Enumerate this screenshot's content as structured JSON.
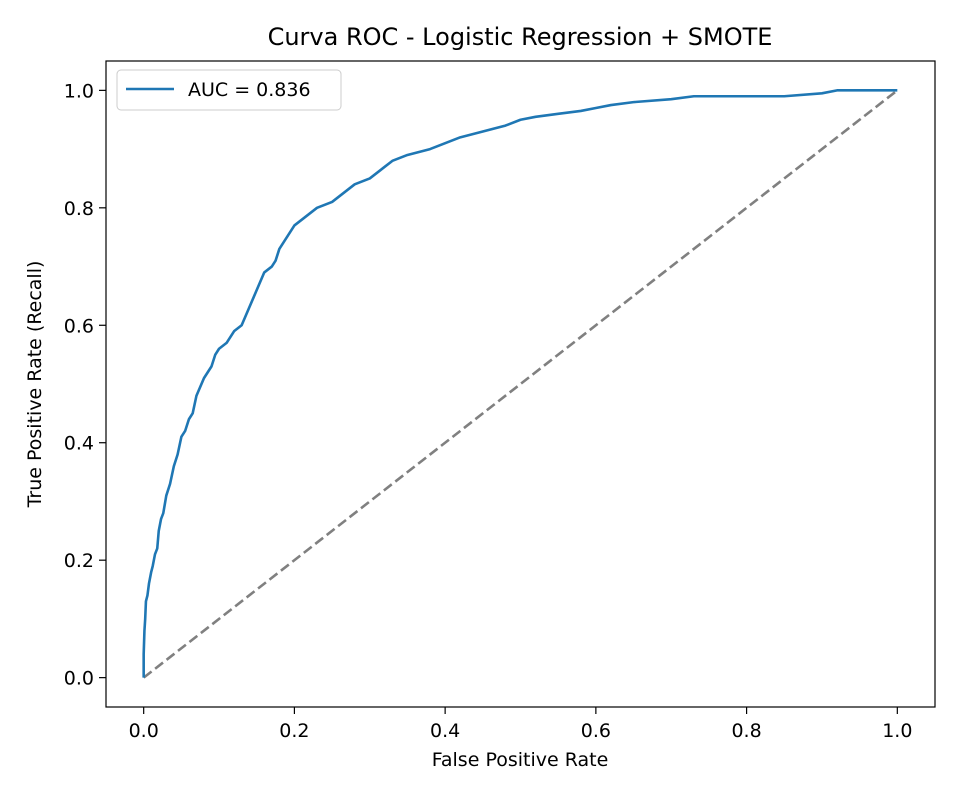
{
  "chart_data": {
    "type": "line",
    "title": "Curva ROC - Logistic Regression + SMOTE",
    "xlabel": "False Positive Rate",
    "ylabel": "True Positive Rate (Recall)",
    "xlim": [
      -0.05,
      1.05
    ],
    "ylim": [
      -0.05,
      1.05
    ],
    "xticks": [
      "0.0",
      "0.2",
      "0.4",
      "0.6",
      "0.8",
      "1.0"
    ],
    "yticks": [
      "0.0",
      "0.2",
      "0.4",
      "0.6",
      "0.8",
      "1.0"
    ],
    "grid": false,
    "legend_position": "upper-left",
    "series": [
      {
        "name": "AUC = 0.836",
        "color": "#1f77b4",
        "style": "solid",
        "x": [
          0.0,
          0.0,
          0.001,
          0.002,
          0.003,
          0.005,
          0.007,
          0.01,
          0.012,
          0.015,
          0.018,
          0.02,
          0.023,
          0.026,
          0.03,
          0.035,
          0.04,
          0.045,
          0.05,
          0.055,
          0.06,
          0.065,
          0.07,
          0.08,
          0.085,
          0.09,
          0.095,
          0.1,
          0.11,
          0.12,
          0.13,
          0.14,
          0.15,
          0.16,
          0.17,
          0.175,
          0.18,
          0.19,
          0.2,
          0.21,
          0.22,
          0.23,
          0.25,
          0.27,
          0.28,
          0.3,
          0.32,
          0.33,
          0.35,
          0.38,
          0.4,
          0.42,
          0.45,
          0.48,
          0.5,
          0.52,
          0.55,
          0.58,
          0.6,
          0.62,
          0.65,
          0.7,
          0.73,
          0.76,
          0.8,
          0.85,
          0.9,
          0.92,
          0.95,
          0.98,
          1.0
        ],
        "y": [
          0.0,
          0.04,
          0.08,
          0.1,
          0.13,
          0.14,
          0.16,
          0.18,
          0.19,
          0.21,
          0.22,
          0.25,
          0.27,
          0.28,
          0.31,
          0.33,
          0.36,
          0.38,
          0.41,
          0.42,
          0.44,
          0.45,
          0.48,
          0.51,
          0.52,
          0.53,
          0.55,
          0.56,
          0.57,
          0.59,
          0.6,
          0.63,
          0.66,
          0.69,
          0.7,
          0.71,
          0.73,
          0.75,
          0.77,
          0.78,
          0.79,
          0.8,
          0.81,
          0.83,
          0.84,
          0.85,
          0.87,
          0.88,
          0.89,
          0.9,
          0.91,
          0.92,
          0.93,
          0.94,
          0.95,
          0.955,
          0.96,
          0.965,
          0.97,
          0.975,
          0.98,
          0.985,
          0.99,
          0.99,
          0.99,
          0.99,
          0.995,
          1.0,
          1.0,
          1.0,
          1.0
        ]
      },
      {
        "color": "#808080",
        "style": "dashed",
        "x": [
          0.0,
          1.0
        ],
        "y": [
          0.0,
          1.0
        ]
      }
    ]
  }
}
